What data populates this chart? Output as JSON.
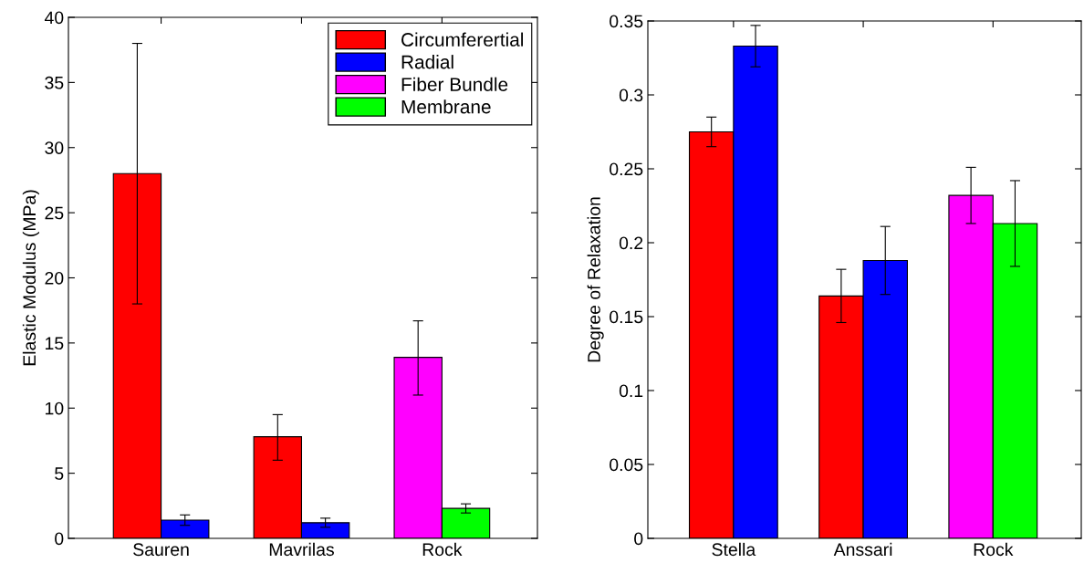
{
  "chart_data": [
    {
      "type": "bar",
      "ylabel": "Elastic Modulus (MPa)",
      "categories": [
        "Sauren",
        "Mavrilas",
        "Rock"
      ],
      "ylim": [
        0,
        40
      ],
      "yticks": [
        0,
        5,
        10,
        15,
        20,
        25,
        30,
        35,
        40
      ],
      "legend": "top right",
      "grid": false,
      "series": [
        {
          "name": "Circumferertial",
          "color": "#ff0000",
          "values": [
            28,
            7.8,
            null
          ],
          "errors": [
            10,
            [
              6,
              9.5
            ],
            null
          ]
        },
        {
          "name": "Radial",
          "color": "#0000ff",
          "values": [
            1.4,
            1.2,
            null
          ],
          "errors": [
            0.4,
            0.35,
            null
          ]
        },
        {
          "name": "Fiber Bundle",
          "color": "#ff00ff",
          "values": [
            null,
            null,
            13.9
          ],
          "errors": [
            null,
            null,
            [
              11,
              16.7
            ]
          ]
        },
        {
          "name": "Membrane",
          "color": "#00ff00",
          "values": [
            null,
            null,
            2.3
          ],
          "errors": [
            null,
            null,
            0.35
          ]
        }
      ]
    },
    {
      "type": "bar",
      "ylabel": "Degree of Relaxation",
      "categories": [
        "Stella",
        "Anssari",
        "Rock"
      ],
      "ylim": [
        0,
        0.35
      ],
      "yticks": [
        0,
        0.05,
        0.1,
        0.15,
        0.2,
        0.25,
        0.3,
        0.35
      ],
      "legend": false,
      "grid": false,
      "series": [
        {
          "color": "#ff0000",
          "values": [
            0.275,
            0.164,
            null
          ],
          "errors": [
            0.01,
            0.018,
            null
          ]
        },
        {
          "color": "#0000ff",
          "values": [
            0.333,
            0.188,
            null
          ],
          "errors": [
            0.014,
            0.023,
            null
          ]
        },
        {
          "color": "#ff00ff",
          "values": [
            null,
            null,
            0.232
          ],
          "errors": [
            null,
            null,
            0.019
          ]
        },
        {
          "color": "#00ff00",
          "values": [
            null,
            null,
            0.213
          ],
          "errors": [
            null,
            null,
            0.029
          ]
        }
      ]
    }
  ]
}
